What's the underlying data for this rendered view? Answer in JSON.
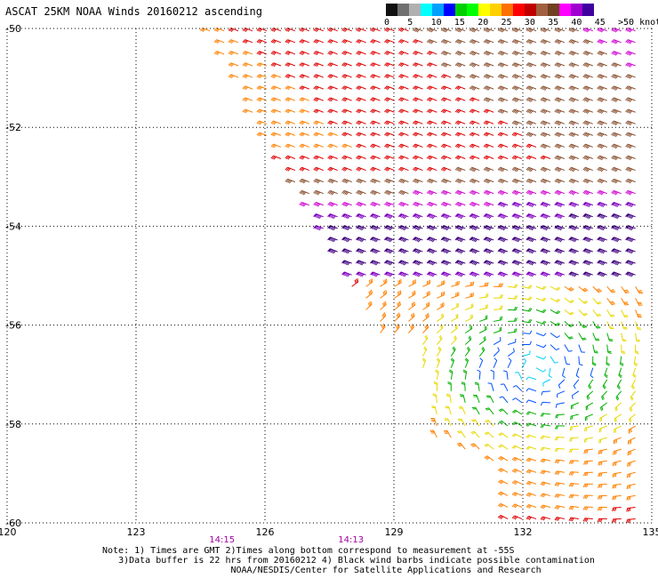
{
  "header": {
    "title": "ASCAT 25KM NOAA Winds 20160212 ascending"
  },
  "legend": {
    "colors": [
      "#111111",
      "#707070",
      "#b0b0b0",
      "#00ffff",
      "#00a0ff",
      "#0000ff",
      "#00d000",
      "#00ff00",
      "#ffff00",
      "#ffd000",
      "#ff7000",
      "#ff0000",
      "#c00000",
      "#a06040",
      "#704020",
      "#ff00ff",
      "#a000d0",
      "#4000a0"
    ],
    "labels": [
      "0",
      "5",
      "10",
      "15",
      "20",
      "25",
      "30",
      "35",
      "40",
      "45",
      ">50 knots"
    ]
  },
  "note": {
    "line1": "Note: 1) Times are GMT 2)Times along bottom correspond to measurement at -55S",
    "line2": "3)Data buffer is 22 hrs from 20160212 4) Black wind barbs indicate possible contamination",
    "line3": "NOAA/NESDIS/Center for Satellite Applications and Research"
  },
  "chart_data": {
    "type": "wind_barb_map",
    "title": "ASCAT 25KM NOAA Winds 20160212 ascending",
    "x_ticks": [
      "120",
      "123",
      "126",
      "129",
      "132",
      "135"
    ],
    "y_ticks": [
      "-50",
      "-52",
      "-54",
      "-56",
      "-58",
      "-60"
    ],
    "x_range": [
      120,
      135
    ],
    "y_range": [
      -60,
      -50
    ],
    "time_labels": [
      {
        "lon": 125,
        "text": "14:15"
      },
      {
        "lon": 128,
        "text": "14:13"
      }
    ],
    "time_label_color": "#a000a0",
    "grid": true,
    "units": "knots",
    "speed_bins": [
      {
        "min": 0,
        "max": 5,
        "color": "#606060"
      },
      {
        "min": 5,
        "max": 10,
        "color": "#00d0ff"
      },
      {
        "min": 10,
        "max": 15,
        "color": "#0050ff"
      },
      {
        "min": 15,
        "max": 20,
        "color": "#00b000"
      },
      {
        "min": 20,
        "max": 25,
        "color": "#e8d800"
      },
      {
        "min": 25,
        "max": 30,
        "color": "#ff8000"
      },
      {
        "min": 30,
        "max": 35,
        "color": "#e00000"
      },
      {
        "min": 35,
        "max": 40,
        "color": "#8a5030"
      },
      {
        "min": 40,
        "max": 45,
        "color": "#d000d0"
      },
      {
        "min": 45,
        "max": 50,
        "color": "#8000c0"
      },
      {
        "min": 50,
        "max": 99,
        "color": "#400080"
      }
    ],
    "low_center": {
      "lon": 132.3,
      "lat": -56.9
    },
    "swath_edge_line": [
      [
        124.6,
        -50.0
      ],
      [
        128.7,
        -56.3
      ]
    ],
    "east_gap": [
      [
        129.5,
        -58.2
      ],
      [
        131.8,
        -58.9
      ],
      [
        132.0,
        -60.0
      ]
    ]
  }
}
